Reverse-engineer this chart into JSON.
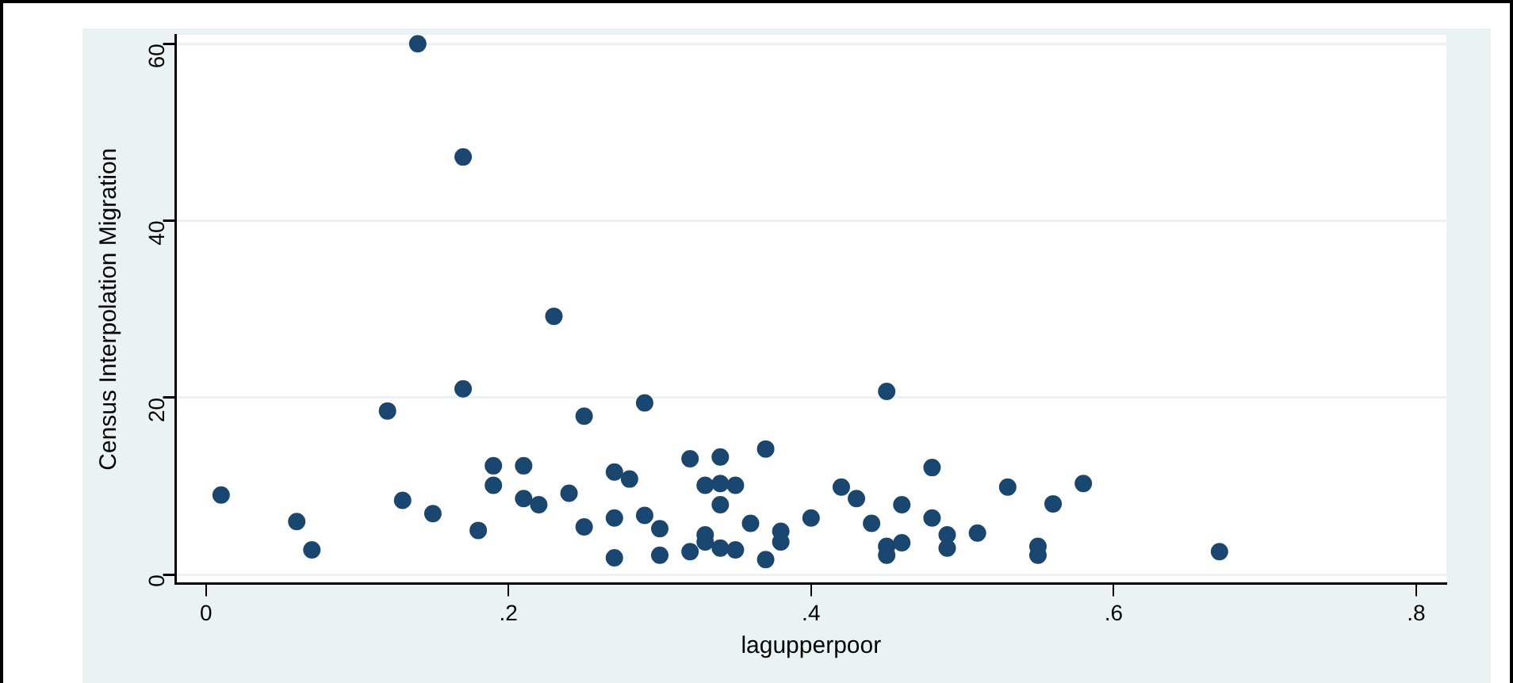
{
  "chart_data": {
    "type": "scatter",
    "xlabel": "lagupperpoor",
    "ylabel": "Census Interpolation Migration",
    "x": [
      0.01,
      0.06,
      0.07,
      0.14,
      0.17,
      0.23,
      0.17,
      0.12,
      0.13,
      0.15,
      0.18,
      0.19,
      0.19,
      0.21,
      0.21,
      0.22,
      0.24,
      0.25,
      0.25,
      0.27,
      0.28,
      0.27,
      0.27,
      0.29,
      0.29,
      0.3,
      0.3,
      0.32,
      0.32,
      0.33,
      0.33,
      0.33,
      0.34,
      0.34,
      0.34,
      0.34,
      0.35,
      0.35,
      0.36,
      0.37,
      0.37,
      0.38,
      0.38,
      0.4,
      0.42,
      0.43,
      0.44,
      0.45,
      0.45,
      0.45,
      0.46,
      0.46,
      0.48,
      0.48,
      0.49,
      0.49,
      0.51,
      0.53,
      0.55,
      0.55,
      0.56,
      0.58,
      0.67
    ],
    "series": [
      {
        "color": "#1a476f",
        "values": [
          9.0,
          6.0,
          2.8,
          60,
          47.2,
          29.2,
          21,
          18.5,
          8.4,
          6.9,
          5.0,
          12.3,
          10.1,
          12.3,
          8.6,
          7.9,
          9.2,
          17.9,
          5.4,
          11.6,
          10.8,
          6.4,
          1.9,
          19.4,
          6.7,
          5.2,
          2.2,
          13.1,
          2.6,
          10.1,
          4.5,
          3.7,
          13.3,
          10.3,
          7.9,
          3.0,
          10.1,
          2.8,
          5.8,
          14.2,
          1.7,
          4.9,
          3.7,
          6.4,
          9.9,
          8.6,
          5.8,
          20.7,
          3.2,
          2.2,
          3.6,
          7.9,
          12.1,
          6.4,
          4.5,
          3.0,
          4.7,
          9.9,
          3.2,
          2.2,
          8.0,
          10.3,
          2.6
        ]
      }
    ],
    "xlim": [
      -0.02,
      0.82
    ],
    "xticks": [
      0,
      {
        "value": 0.2,
        "label": ".2"
      },
      {
        "value": 0.4,
        "label": ".4"
      },
      {
        "value": 0.6,
        "label": ".6"
      },
      {
        "value": 0.8,
        "label": ".8"
      }
    ],
    "ylim": [
      -1,
      61
    ],
    "yticks": [
      0,
      20,
      40,
      60
    ],
    "grid": "y",
    "marker": "circle",
    "legend": false
  }
}
